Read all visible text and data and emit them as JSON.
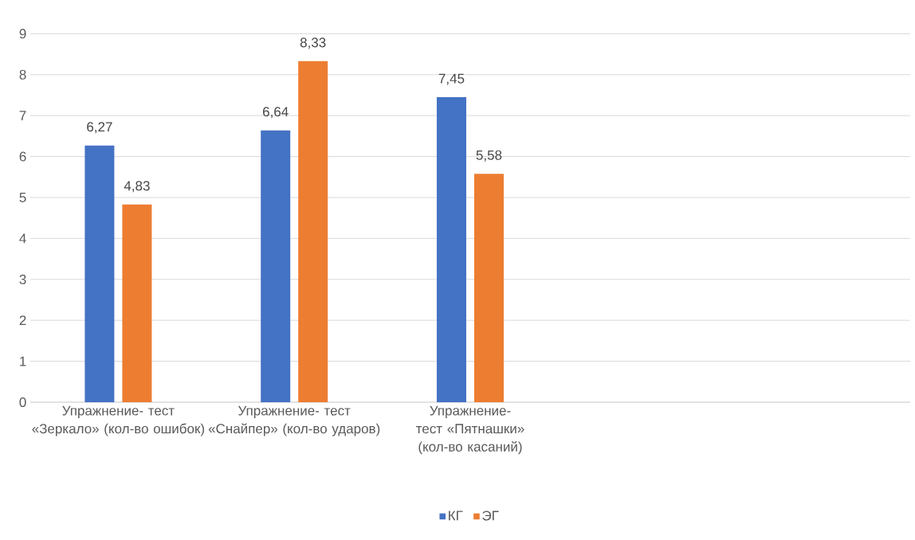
{
  "chart_data": {
    "type": "bar",
    "categories": [
      "Упражнение- тест «Зеркало» (кол-во ошибок)",
      "Упражнение- тест «Снайпер» (кол-во ударов)",
      "Упражнение-тест «Пятнашки» (кол-во касаний)",
      null,
      null
    ],
    "series": [
      {
        "name": "КГ",
        "color": "#4472c4",
        "values": [
          6.27,
          6.64,
          7.45,
          null,
          null
        ],
        "value_labels": [
          "6,27",
          "6,64",
          "7,45",
          null,
          null
        ]
      },
      {
        "name": "ЭГ",
        "color": "#ed7d31",
        "values": [
          4.83,
          8.33,
          5.58,
          null,
          null
        ],
        "value_labels": [
          "4,83",
          "8,33",
          "5,58",
          null,
          null
        ]
      }
    ],
    "ylim": [
      0,
      9
    ],
    "yticks": [
      0,
      1,
      2,
      3,
      4,
      5,
      6,
      7,
      8,
      9
    ],
    "grid": "y",
    "legend": "bottom"
  }
}
